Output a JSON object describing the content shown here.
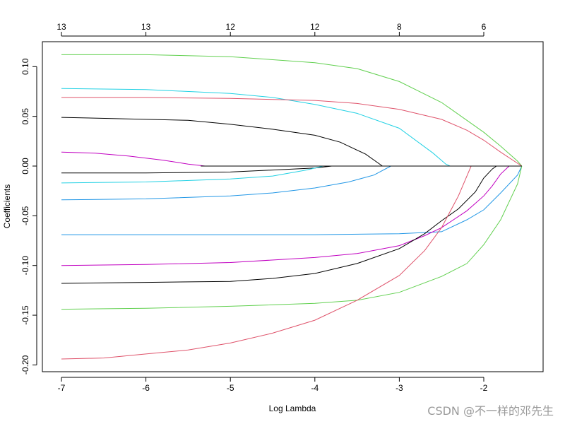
{
  "chart_data": {
    "type": "line",
    "xlabel": "Log Lambda",
    "ylabel": "Coefficients",
    "xlim": [
      -7.2,
      -1.5
    ],
    "ylim": [
      -0.205,
      0.125
    ],
    "x_ticks": [
      -7,
      -6,
      -5,
      -4,
      -3,
      -2
    ],
    "x_tick_labels": [
      "-7",
      "-6",
      "-5",
      "-4",
      "-3",
      "-2"
    ],
    "y_ticks": [
      -0.2,
      -0.15,
      -0.1,
      -0.05,
      0.0,
      0.05,
      0.1
    ],
    "y_tick_labels": [
      "-0.20",
      "-0.15",
      "-0.10",
      "-0.05",
      "0.00",
      "0.05",
      "0.10"
    ],
    "top_ticks": [
      -7,
      -6,
      -5,
      -4,
      -3,
      -2
    ],
    "top_tick_labels": [
      "13",
      "13",
      "12",
      "12",
      "8",
      "6"
    ],
    "grid": false,
    "series": [
      {
        "color": "#61D04F",
        "x": [
          -7,
          -6,
          -5,
          -4,
          -3.5,
          -3,
          -2.5,
          -2,
          -1.8,
          -1.6,
          -1.55
        ],
        "values": [
          0.112,
          0.112,
          0.11,
          0.104,
          0.098,
          0.085,
          0.064,
          0.034,
          0.02,
          0.005,
          0
        ]
      },
      {
        "color": "#22D1E4",
        "x": [
          -7,
          -6,
          -5,
          -4.5,
          -4,
          -3.5,
          -3,
          -2.6,
          -2.45,
          -2.4
        ],
        "values": [
          0.078,
          0.077,
          0.073,
          0.069,
          0.062,
          0.053,
          0.038,
          0.013,
          0.002,
          0
        ]
      },
      {
        "color": "#DF536B",
        "x": [
          -7,
          -6,
          -5,
          -4,
          -3.5,
          -3,
          -2.5,
          -2.2,
          -2,
          -1.8,
          -1.55
        ],
        "values": [
          0.069,
          0.069,
          0.068,
          0.066,
          0.063,
          0.057,
          0.047,
          0.036,
          0.026,
          0.014,
          0
        ]
      },
      {
        "color": "#000000",
        "x": [
          -7,
          -6,
          -5.5,
          -5,
          -4.5,
          -4,
          -3.7,
          -3.4,
          -3.2
        ],
        "values": [
          0.049,
          0.047,
          0.046,
          0.042,
          0.037,
          0.031,
          0.024,
          0.012,
          0
        ]
      },
      {
        "color": "#C100C1",
        "x": [
          -7,
          -6.6,
          -6.2,
          -5.8,
          -5.5,
          -5.35,
          -5.3
        ],
        "values": [
          0.014,
          0.013,
          0.01,
          0.006,
          0.002,
          0.0005,
          0
        ]
      },
      {
        "color": "#000000",
        "x": [
          -7,
          -6,
          -5,
          -4.5,
          -4,
          -3.8
        ],
        "values": [
          -0.007,
          -0.007,
          -0.006,
          -0.004,
          -0.002,
          0
        ]
      },
      {
        "color": "#22D1E4",
        "x": [
          -7,
          -6,
          -5,
          -4.5,
          -4.1,
          -3.9
        ],
        "values": [
          -0.017,
          -0.016,
          -0.013,
          -0.01,
          -0.004,
          0
        ]
      },
      {
        "color": "#2297E6",
        "x": [
          -7,
          -6,
          -5,
          -4.5,
          -4,
          -3.6,
          -3.3,
          -3.1
        ],
        "values": [
          -0.034,
          -0.033,
          -0.03,
          -0.027,
          -0.022,
          -0.016,
          -0.009,
          0
        ]
      },
      {
        "color": "#2297E6",
        "x": [
          -7,
          -6,
          -5,
          -4,
          -3,
          -2.5,
          -2.2,
          -2,
          -1.8,
          -1.6,
          -1.55
        ],
        "values": [
          -0.069,
          -0.069,
          -0.069,
          -0.069,
          -0.068,
          -0.066,
          -0.054,
          -0.044,
          -0.027,
          -0.009,
          0
        ]
      },
      {
        "color": "#C100C1",
        "x": [
          -7,
          -6,
          -5,
          -4,
          -3.5,
          -3,
          -2.7,
          -2.5,
          -2.2,
          -2,
          -1.9,
          -1.8,
          -1.7
        ],
        "values": [
          -0.1,
          -0.099,
          -0.097,
          -0.092,
          -0.088,
          -0.08,
          -0.07,
          -0.062,
          -0.045,
          -0.03,
          -0.02,
          -0.008,
          0
        ]
      },
      {
        "color": "#000000",
        "x": [
          -7,
          -6,
          -5,
          -4.5,
          -4,
          -3.5,
          -3,
          -2.7,
          -2.5,
          -2.3,
          -2.1,
          -2,
          -1.9,
          -1.85
        ],
        "values": [
          -0.118,
          -0.117,
          -0.116,
          -0.113,
          -0.108,
          -0.098,
          -0.083,
          -0.068,
          -0.055,
          -0.043,
          -0.026,
          -0.012,
          -0.003,
          0
        ]
      },
      {
        "color": "#61D04F",
        "x": [
          -7,
          -6,
          -5,
          -4,
          -3.5,
          -3,
          -2.5,
          -2.2,
          -2,
          -1.8,
          -1.6,
          -1.55
        ],
        "values": [
          -0.144,
          -0.143,
          -0.141,
          -0.138,
          -0.135,
          -0.127,
          -0.111,
          -0.098,
          -0.079,
          -0.054,
          -0.018,
          0
        ]
      },
      {
        "color": "#DF536B",
        "x": [
          -7,
          -6.5,
          -6,
          -5.5,
          -5,
          -4.5,
          -4,
          -3.5,
          -3,
          -2.7,
          -2.5,
          -2.3,
          -2.2,
          -2.15
        ],
        "values": [
          -0.194,
          -0.193,
          -0.189,
          -0.185,
          -0.178,
          -0.168,
          -0.155,
          -0.135,
          -0.11,
          -0.085,
          -0.062,
          -0.03,
          -0.01,
          0
        ]
      },
      {
        "color": "#000000",
        "x": [
          -5.35,
          -4,
          -3.2,
          -2.5,
          -2,
          -1.55
        ],
        "values": [
          0,
          0,
          0,
          0,
          0,
          0
        ]
      }
    ]
  },
  "watermark": "CSDN @不一样的邓先生"
}
